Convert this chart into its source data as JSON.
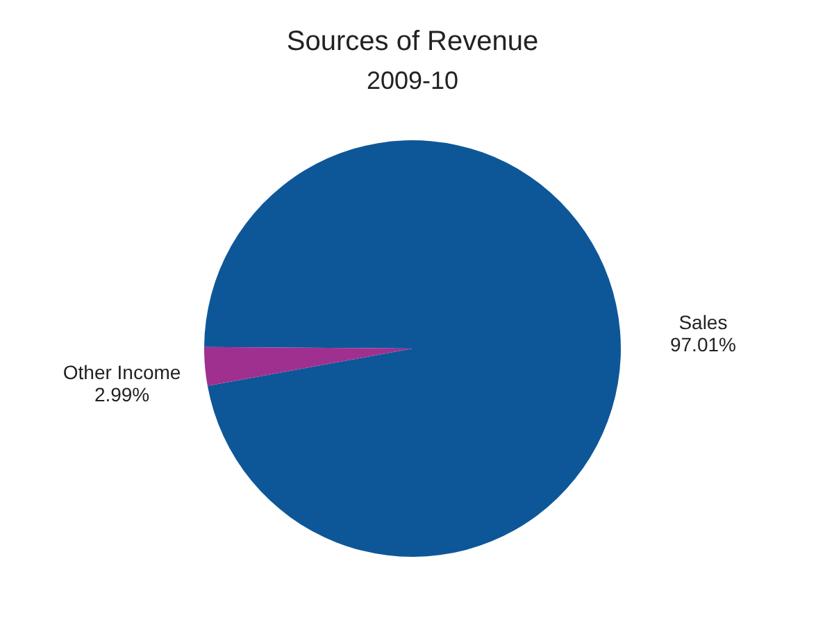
{
  "chart_data": {
    "type": "pie",
    "title": "Sources of Revenue",
    "subtitle": "2009-10",
    "categories": [
      "Sales",
      "Other Income"
    ],
    "values": [
      97.01,
      2.99
    ],
    "colors": [
      "#0d5799",
      "#a0308f"
    ],
    "value_labels": [
      "97.01%",
      "2.99%"
    ]
  }
}
